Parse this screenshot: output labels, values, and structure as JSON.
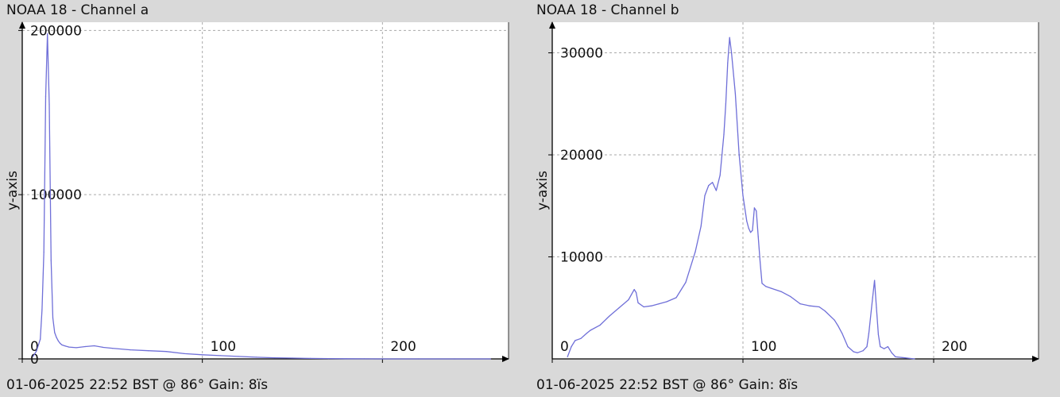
{
  "chart_data": [
    {
      "type": "line",
      "title": "NOAA 18 - Channel a",
      "ylabel": "y-axis",
      "xlabel": "",
      "xlim": [
        0,
        270
      ],
      "ylim": [
        0,
        205000
      ],
      "xticks": [
        0,
        100,
        200
      ],
      "yticks": [
        0,
        100000,
        200000
      ],
      "grid": true,
      "line_color": "#6f6fd8",
      "footer": "01-06-2025 22:52 BST @ 86° Gain: 8ïs",
      "series": [
        {
          "x": [
            6,
            8,
            10,
            11,
            12,
            13,
            14,
            15,
            16,
            17,
            18,
            19,
            20,
            21,
            22,
            24,
            26,
            28,
            30,
            35,
            40,
            45,
            50,
            60,
            70,
            80,
            90,
            100,
            110,
            120,
            130,
            140,
            150,
            160,
            170,
            180,
            190,
            200,
            220,
            240,
            260
          ],
          "y": [
            1500,
            5000,
            12000,
            30000,
            65000,
            160000,
            198000,
            155000,
            60000,
            25000,
            16000,
            13000,
            11000,
            9500,
            8500,
            7800,
            7200,
            7000,
            6800,
            7500,
            8000,
            7000,
            6500,
            5500,
            5000,
            4500,
            3200,
            2500,
            2000,
            1500,
            1000,
            700,
            500,
            300,
            200,
            100,
            50,
            0,
            0,
            0,
            0
          ]
        }
      ]
    },
    {
      "type": "line",
      "title": "NOAA 18 - Channel b",
      "ylabel": "y-axis",
      "xlabel": "",
      "xlim": [
        0,
        255
      ],
      "ylim": [
        0,
        33000
      ],
      "xticks": [
        0,
        100,
        200
      ],
      "yticks": [
        10000,
        20000,
        30000
      ],
      "grid": true,
      "line_color": "#6f6fd8",
      "footer": "01-06-2025 22:52 BST @ 86° Gain: 8ïs",
      "series": [
        {
          "x": [
            8,
            10,
            12,
            15,
            18,
            20,
            25,
            30,
            35,
            40,
            43,
            44,
            45,
            48,
            52,
            56,
            60,
            65,
            70,
            75,
            78,
            80,
            82,
            84,
            86,
            88,
            90,
            91,
            92,
            93,
            94,
            96,
            98,
            100,
            102,
            103,
            104,
            105,
            106,
            107,
            108,
            109,
            110,
            112,
            115,
            120,
            125,
            130,
            135,
            140,
            143,
            148,
            150,
            152,
            155,
            158,
            160,
            163,
            165,
            166,
            168,
            169,
            170,
            171,
            172,
            174,
            176,
            178,
            180,
            185,
            190
          ],
          "y": [
            200,
            1200,
            1800,
            2000,
            2500,
            2800,
            3300,
            4200,
            5000,
            5800,
            6800,
            6500,
            5500,
            5100,
            5200,
            5400,
            5600,
            6000,
            7500,
            10500,
            13000,
            16000,
            17000,
            17300,
            16500,
            18000,
            22000,
            25000,
            29000,
            31500,
            30000,
            26000,
            20000,
            16000,
            13500,
            12800,
            12400,
            12600,
            14800,
            14500,
            12000,
            9500,
            7400,
            7100,
            6900,
            6600,
            6100,
            5400,
            5200,
            5100,
            4700,
            3800,
            3200,
            2500,
            1200,
            700,
            600,
            800,
            1200,
            2500,
            6000,
            7700,
            5000,
            2400,
            1200,
            1000,
            1200,
            600,
            200,
            100,
            0
          ]
        }
      ]
    }
  ]
}
